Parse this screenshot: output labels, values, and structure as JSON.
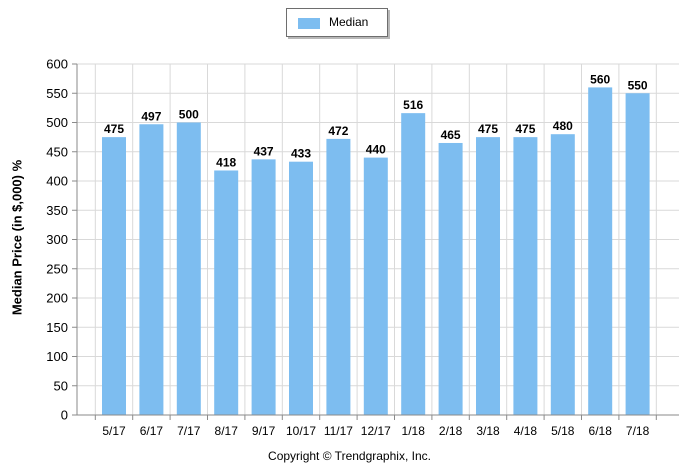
{
  "legend": {
    "label": "Median",
    "color": "#7dbdf0"
  },
  "footer": {
    "copyright": "Copyright © Trendgraphix, Inc."
  },
  "chart_data": {
    "type": "bar",
    "categories": [
      "5/17",
      "6/17",
      "7/17",
      "8/17",
      "9/17",
      "10/17",
      "11/17",
      "12/17",
      "1/18",
      "2/18",
      "3/18",
      "4/18",
      "5/18",
      "6/18",
      "7/18"
    ],
    "series": [
      {
        "name": "Median",
        "values": [
          475,
          497,
          500,
          418,
          437,
          433,
          472,
          440,
          516,
          465,
          475,
          475,
          480,
          560,
          550
        ]
      }
    ],
    "ylabel": "Median Price (in $,000) %",
    "ylim": [
      0,
      600
    ],
    "yticks": [
      0,
      50,
      100,
      150,
      200,
      250,
      300,
      350,
      400,
      450,
      500,
      550,
      600
    ],
    "grid": true,
    "legend_position": "top-center",
    "bar_color": "#7dbdf0",
    "grid_color": "#d9d9d9"
  }
}
